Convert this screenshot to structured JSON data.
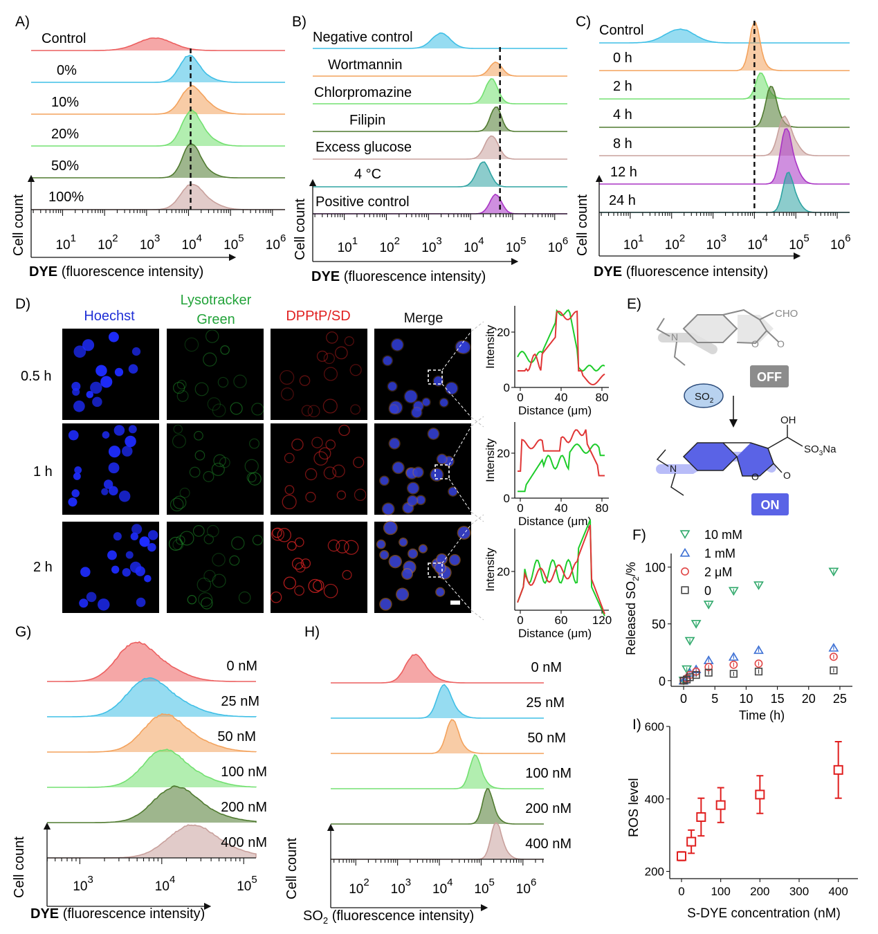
{
  "colors": {
    "red": "#ec5f5f",
    "blue": "#3fbfe6",
    "orange": "#f3a25c",
    "lgreen": "#72e070",
    "dgreen": "#4f7a2f",
    "pink": "#c8a09c",
    "teal": "#2ea3a2",
    "purple": "#a833c4"
  },
  "panels": {
    "A": {
      "letter": "A)",
      "labels": [
        "Control",
        "0%",
        "10%",
        "20%",
        "50%",
        "100%"
      ],
      "centers": [
        3.2,
        4.0,
        4.05,
        4.05,
        4.05,
        4.05
      ]
    },
    "B": {
      "letter": "B)",
      "labels": [
        "Negative control",
        "Wortmannin",
        "Chlorpromazine",
        "Filipin",
        "Excess glucose",
        "4 °C",
        "Positive control"
      ],
      "centers": [
        3.3,
        4.6,
        4.5,
        4.6,
        4.5,
        4.3,
        4.6
      ]
    },
    "C": {
      "letter": "C)",
      "labels": [
        "Control",
        "0 h",
        "2 h",
        "4 h",
        "8 h",
        "12 h",
        "24 h"
      ],
      "centers": [
        2.2,
        4.0,
        4.15,
        4.4,
        4.7,
        4.75,
        4.8
      ]
    },
    "D": {
      "letter": "D)",
      "columns": [
        "Hoechst",
        "Lysotracker",
        "Green",
        "DPPtP/SD",
        "Merge"
      ],
      "rows": [
        "0.5 h",
        "1 h",
        "2 h"
      ],
      "profiles": [
        {
          "ylabel": "Intensity",
          "xlabel": "Distance (μm)",
          "xticks": [
            "0",
            "40",
            "80"
          ],
          "yticks": [
            "0",
            "20"
          ]
        },
        {
          "ylabel": "Intensity",
          "xlabel": "Distance (μm)",
          "xticks": [
            "0",
            "40",
            "80"
          ],
          "yticks": [
            "0",
            "20"
          ]
        },
        {
          "ylabel": "Intensity",
          "xlabel": "Distance (μm)",
          "xticks": [
            "0",
            "60",
            "120"
          ],
          "yticks": [
            "20"
          ]
        }
      ]
    },
    "E": {
      "letter": "E)",
      "cho": "CHO",
      "off": "OFF",
      "on": "ON",
      "so2": "SO",
      "so2_sub": "2",
      "oh": "OH",
      "so3na": "SO",
      "so3na_sub": "3",
      "na": "Na",
      "o1": "O",
      "o2": "O",
      "n": "N"
    },
    "G": {
      "letter": "G)",
      "labels": [
        "0 nM",
        "25 nM",
        "50 nM",
        "100 nM",
        "200 nM",
        "400 nM"
      ],
      "centers": [
        3.65,
        3.8,
        4.0,
        4.0,
        4.15,
        4.35
      ]
    },
    "H": {
      "letter": "H)",
      "labels": [
        "0 nM",
        "25 nM",
        "50 nM",
        "100 nM",
        "200 nM",
        "400 nM"
      ],
      "centers": [
        3.4,
        4.1,
        4.3,
        4.85,
        5.15,
        5.35
      ]
    },
    "I": {
      "letter": "I)"
    }
  },
  "common": {
    "cell_count": "Cell count",
    "dye": "DYE",
    "fluor": "(fluorescence intensity)",
    "so2_fluor": "(fluorescence intensity)"
  },
  "chart_data": [
    {
      "type": "scatter",
      "panel": "F",
      "xlabel": "Time (h)",
      "ylabel": "Released SO2/%",
      "xlim": [
        -2,
        27
      ],
      "ylim": [
        -5,
        112
      ],
      "xticks": [
        "0",
        "5",
        "10",
        "15",
        "20",
        "25"
      ],
      "yticks": [
        "0",
        "50",
        "100"
      ],
      "series": [
        {
          "name": "10 mM",
          "symbol": "triangle-down",
          "color": "#2ea86a",
          "x": [
            0,
            0.5,
            1,
            2,
            4,
            8,
            12,
            24
          ],
          "y": [
            0,
            10,
            35,
            50,
            67,
            79,
            84,
            96
          ]
        },
        {
          "name": "1 mM",
          "symbol": "triangle-up",
          "color": "#3b6fd4",
          "x": [
            0,
            0.5,
            1,
            2,
            4,
            8,
            12,
            24
          ],
          "y": [
            0,
            3,
            7,
            10,
            18,
            21,
            27,
            29
          ]
        },
        {
          "name": "2 μM",
          "symbol": "circle",
          "color": "#e04545",
          "x": [
            0,
            0.5,
            1,
            2,
            4,
            8,
            12,
            24
          ],
          "y": [
            0,
            2,
            5,
            8,
            12,
            14,
            15,
            21
          ]
        },
        {
          "name": "0",
          "symbol": "square",
          "color": "#444444",
          "x": [
            0,
            0.5,
            1,
            2,
            4,
            8,
            12,
            24
          ],
          "y": [
            0,
            1,
            3,
            5,
            7,
            6,
            8,
            9
          ]
        }
      ]
    },
    {
      "type": "scatter",
      "panel": "I",
      "xlabel": "S-DYE concentration (nM)",
      "ylabel": "ROS level",
      "xlim": [
        -30,
        450
      ],
      "ylim": [
        180,
        600
      ],
      "xticks": [
        "0",
        "100",
        "200",
        "300",
        "400"
      ],
      "yticks": [
        "200",
        "400",
        "600"
      ],
      "series": [
        {
          "name": "ROS",
          "symbol": "square",
          "color": "#e01e1e",
          "x": [
            0,
            25,
            50,
            100,
            200,
            400
          ],
          "y": [
            242,
            282,
            350,
            383,
            412,
            480
          ],
          "err": [
            12,
            32,
            52,
            48,
            52,
            78
          ]
        }
      ]
    }
  ]
}
